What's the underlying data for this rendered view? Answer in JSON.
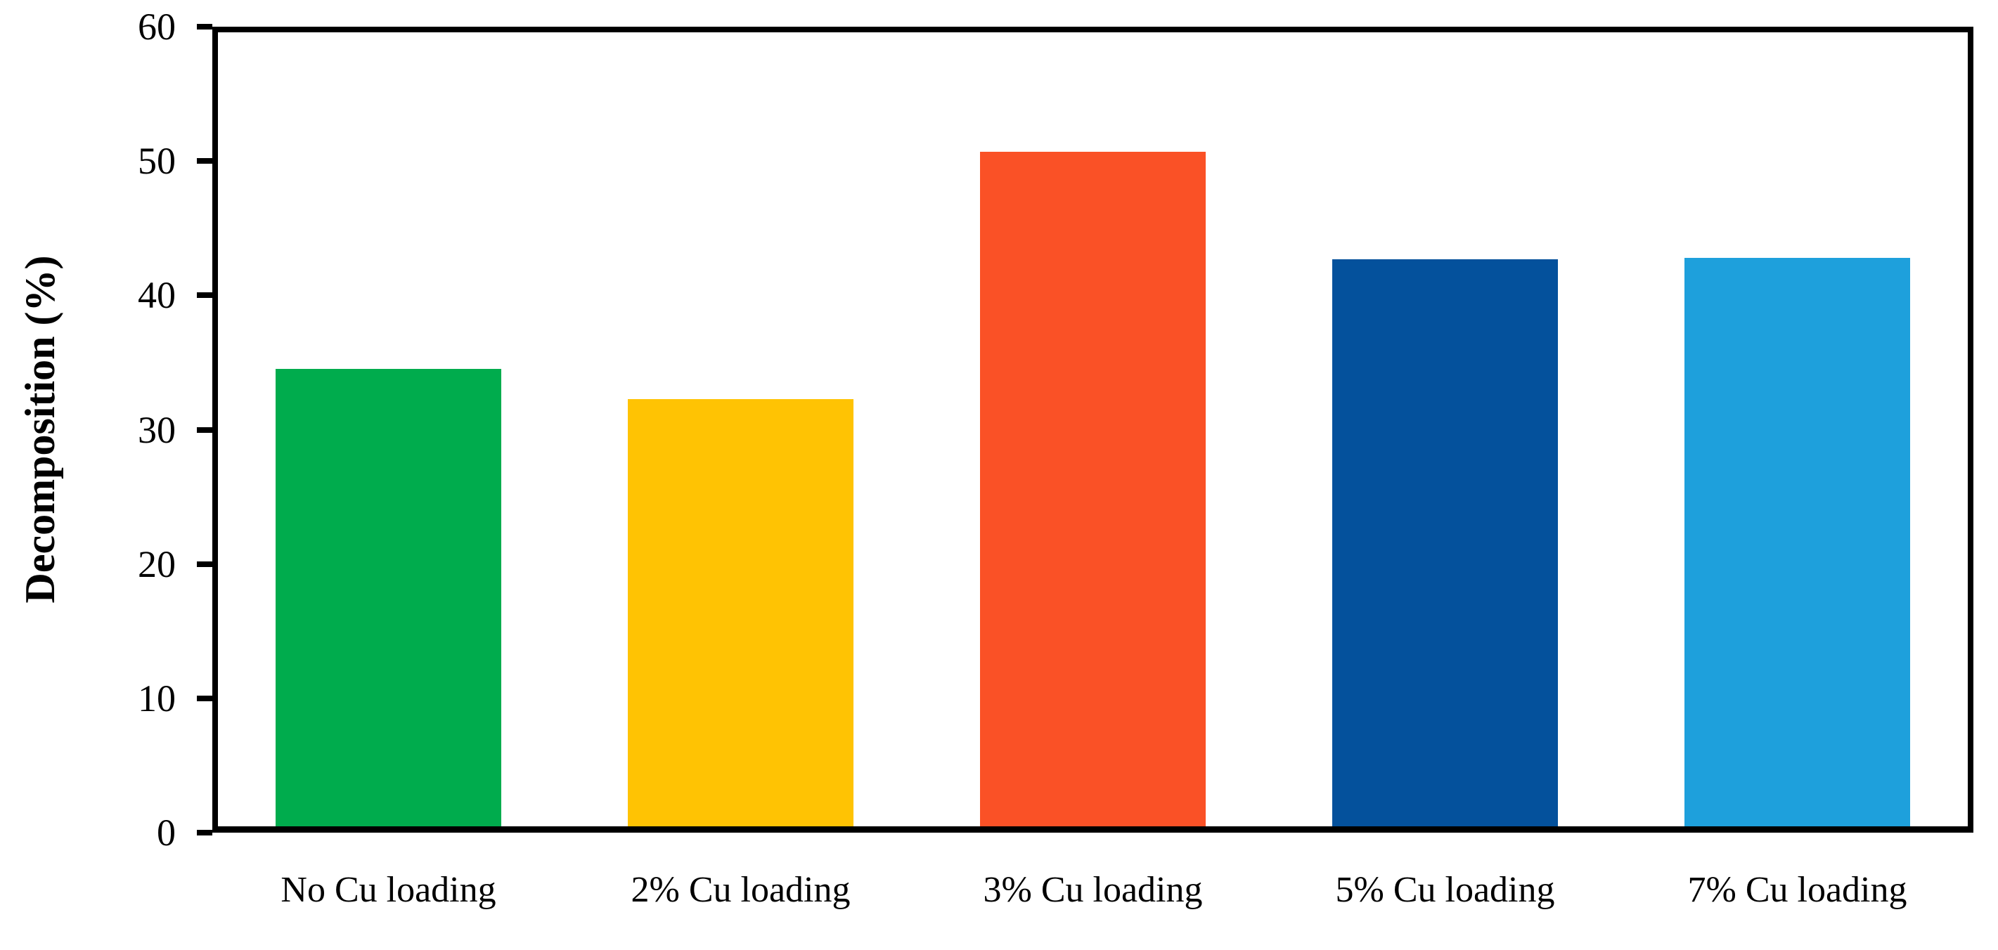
{
  "figure": {
    "background": "#ffffff",
    "text_color": "#000000"
  },
  "chart_data": {
    "type": "bar",
    "title": "",
    "categories": [
      "No Cu loading",
      "2% Cu loading",
      "3% Cu loading",
      "5% Cu loading",
      "7% Cu loading"
    ],
    "values": [
      34.5,
      32.3,
      50.7,
      42.7,
      42.8
    ],
    "bar_colors": [
      "#00AC4D",
      "#FFC303",
      "#FA5126",
      "#04519C",
      "#1EA0DC"
    ],
    "xlabel": "",
    "ylabel": "Decomposition (%)",
    "ylim": [
      0,
      60
    ],
    "yticks": [
      0,
      10,
      20,
      30,
      40,
      50,
      60
    ],
    "grid": false,
    "legend": "none",
    "plot_border": true,
    "tick_direction": "out",
    "bar_width_fraction": 0.64,
    "axis_color": "#000000"
  }
}
